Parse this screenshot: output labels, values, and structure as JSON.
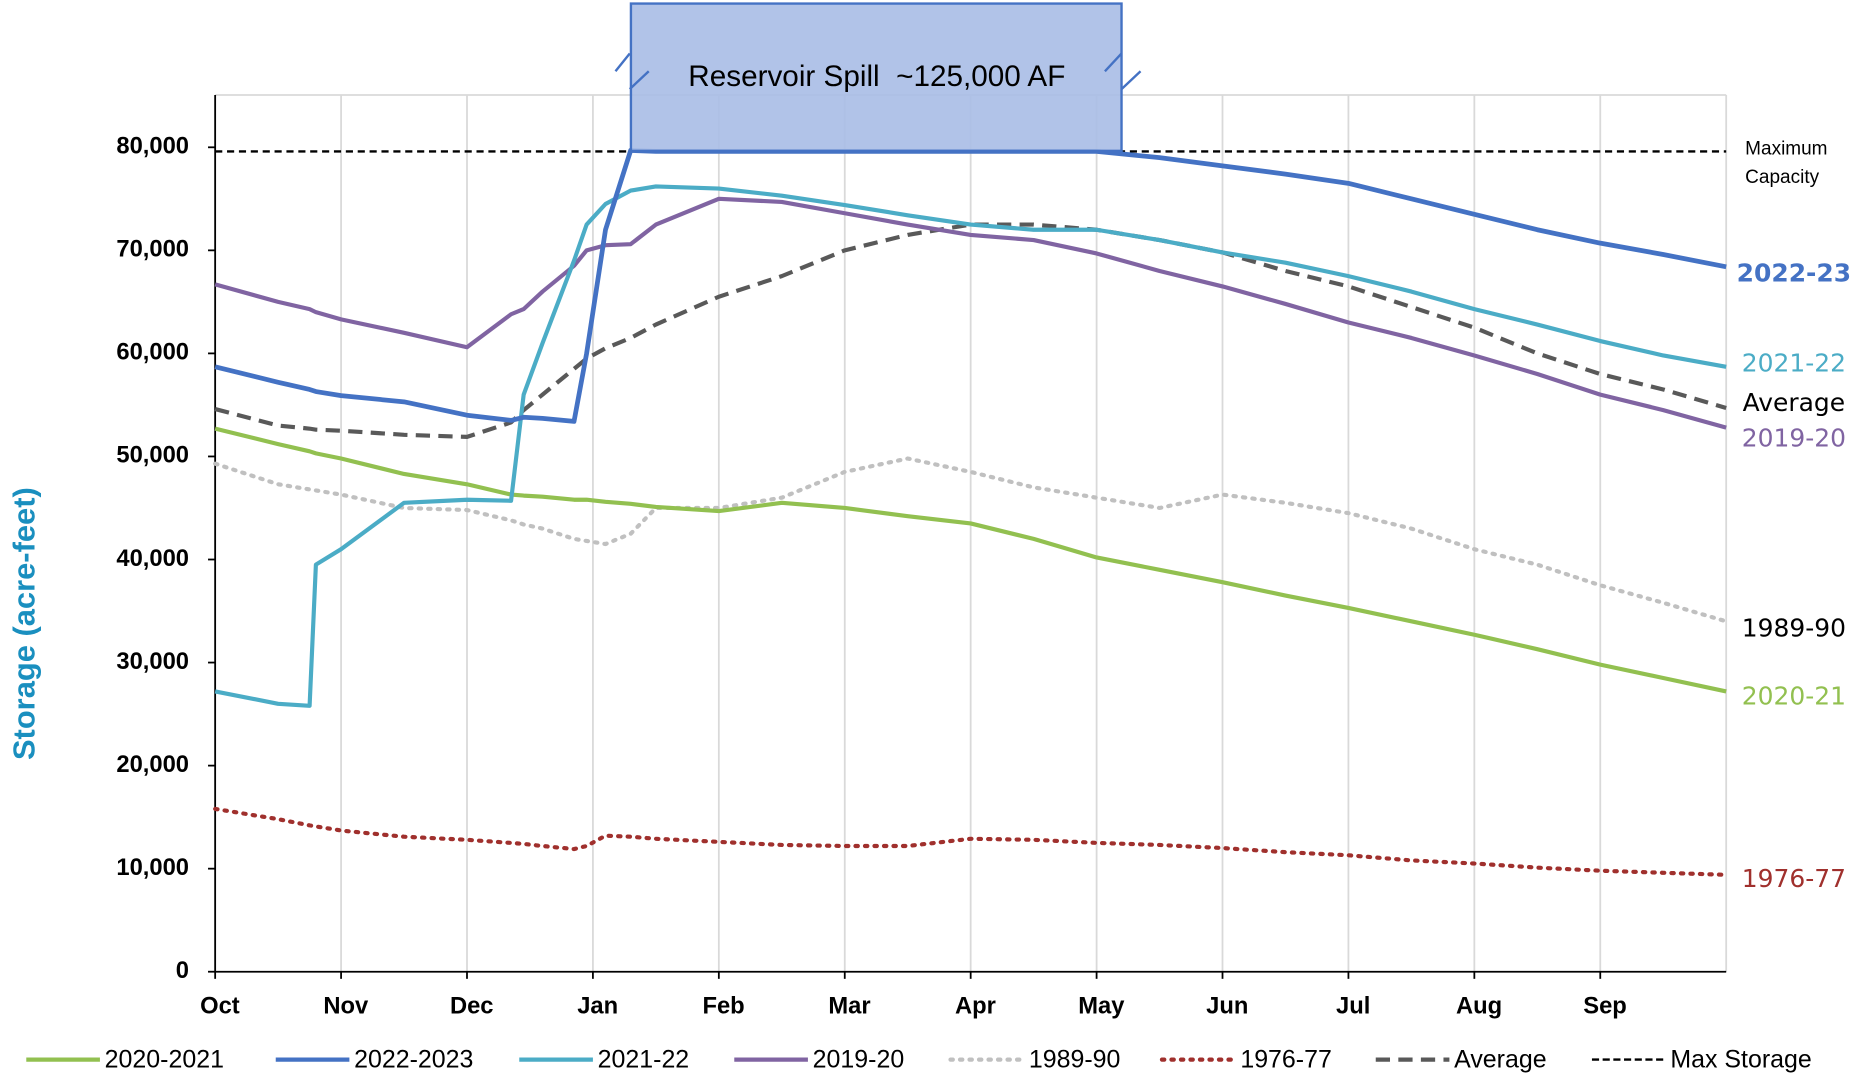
{
  "chart_data": {
    "type": "line",
    "y_axis_label": "Storage (acre-feet)",
    "annotation": "Reservoir Spill  ~125,000 AF",
    "xlim": [
      0,
      12
    ],
    "xticks": [
      {
        "value": 0,
        "label": "Oct"
      },
      {
        "value": 1,
        "label": "Nov"
      },
      {
        "value": 2,
        "label": "Dec"
      },
      {
        "value": 3,
        "label": "Jan"
      },
      {
        "value": 4,
        "label": "Feb"
      },
      {
        "value": 5,
        "label": "Mar"
      },
      {
        "value": 6,
        "label": "Apr"
      },
      {
        "value": 7,
        "label": "May"
      },
      {
        "value": 8,
        "label": "Jun"
      },
      {
        "value": 9,
        "label": "Jul"
      },
      {
        "value": 10,
        "label": "Aug"
      },
      {
        "value": 11,
        "label": "Sep"
      }
    ],
    "ylim": [
      0,
      80000
    ],
    "yticks": [
      0,
      {
        "value": 10000,
        "label": "10,000"
      },
      {
        "value": 20000,
        "label": "20,000"
      },
      {
        "value": 30000,
        "label": "30,000"
      },
      {
        "value": 40000,
        "label": "40,000"
      },
      {
        "value": 50000,
        "label": "50,000"
      },
      {
        "value": 60000,
        "label": "60,000"
      },
      {
        "value": 70000,
        "label": "70,000"
      },
      {
        "value": 80000,
        "label": "80,000"
      }
    ],
    "grid": true,
    "legend": "bottom",
    "x": [
      0,
      0.5,
      0.75,
      0.8,
      1,
      1.5,
      2,
      2.35,
      2.45,
      2.6,
      2.85,
      2.95,
      3.1,
      3.3,
      3.5,
      4,
      4.5,
      5,
      5.5,
      6,
      6.5,
      7,
      7.5,
      8,
      8.5,
      9,
      9.5,
      10,
      10.5,
      11,
      11.5,
      12
    ],
    "series": [
      {
        "name": "2020-2021",
        "end_label": "2020-21",
        "color": "#92c050",
        "style": "solid",
        "values": [
          52700,
          51200,
          50500,
          50300,
          49800,
          48300,
          47300,
          46300,
          46200,
          46100,
          45800,
          45800,
          45600,
          45400,
          45100,
          44700,
          45500,
          45000,
          44200,
          43500,
          42000,
          40200,
          39000,
          37800,
          36500,
          35300,
          34000,
          32700,
          31300,
          29800,
          28500,
          27200
        ]
      },
      {
        "name": "2022-2023",
        "end_label": "2022-23",
        "color": "#4472c4",
        "style": "solid",
        "values": [
          58700,
          57200,
          56500,
          56300,
          55900,
          55300,
          54000,
          53500,
          53800,
          53700,
          53400,
          60000,
          72000,
          79700,
          79600,
          79600,
          79600,
          79600,
          79600,
          79600,
          79600,
          79600,
          79000,
          78200,
          77400,
          76500,
          75000,
          73500,
          72000,
          70700,
          69600,
          68400
        ]
      },
      {
        "name": "2021-22",
        "end_label": "2021-22",
        "color": "#4bacc6",
        "style": "solid",
        "values": [
          27200,
          26000,
          25800,
          39500,
          41000,
          45500,
          45800,
          45700,
          56000,
          61000,
          69000,
          72500,
          74500,
          75800,
          76200,
          76000,
          75300,
          74400,
          73400,
          72500,
          72000,
          72000,
          71000,
          69800,
          68800,
          67500,
          66000,
          64300,
          62800,
          61200,
          59800,
          58700
        ]
      },
      {
        "name": "2019-20",
        "end_label": "2019-20",
        "color": "#8064a2",
        "style": "solid",
        "values": [
          66700,
          65000,
          64300,
          64000,
          63300,
          62000,
          60600,
          63800,
          64300,
          66000,
          68500,
          70000,
          70500,
          70600,
          72500,
          75000,
          74700,
          73600,
          72500,
          71500,
          71000,
          69700,
          68000,
          66500,
          64800,
          63000,
          61500,
          59800,
          58000,
          56000,
          54500,
          52800
        ]
      },
      {
        "name": "1989-90",
        "end_label": "1989-90",
        "color": "#c0c0c0",
        "style": "dotted",
        "values": [
          49300,
          47300,
          46800,
          46700,
          46300,
          45000,
          44800,
          43800,
          43400,
          43000,
          42000,
          41800,
          41500,
          42500,
          45000,
          45000,
          46000,
          48500,
          49800,
          48500,
          47000,
          46000,
          45000,
          46300,
          45500,
          44500,
          43000,
          41000,
          39500,
          37500,
          35800,
          34000
        ]
      },
      {
        "name": "1976-77",
        "end_label": "1976-77",
        "color": "#a0302d",
        "style": "dotted",
        "values": [
          15800,
          14800,
          14200,
          14100,
          13700,
          13100,
          12800,
          12500,
          12400,
          12200,
          11900,
          12200,
          13200,
          13100,
          12900,
          12600,
          12300,
          12200,
          12200,
          12900,
          12800,
          12500,
          12300,
          12000,
          11600,
          11300,
          10800,
          10500,
          10100,
          9800,
          9600,
          9400
        ]
      },
      {
        "name": "Average",
        "end_label": "Average",
        "color": "#595959",
        "style": "dashed",
        "values": [
          54600,
          53000,
          52700,
          52600,
          52500,
          52100,
          51900,
          53300,
          54500,
          56000,
          58500,
          59500,
          60500,
          61500,
          62800,
          65500,
          67500,
          70000,
          71500,
          72500,
          72500,
          72000,
          71000,
          69800,
          68000,
          66500,
          64500,
          62500,
          60000,
          58000,
          56500,
          54700
        ]
      }
    ],
    "max_storage": {
      "name": "Max Storage",
      "label": [
        "Maximum",
        "Capacity"
      ],
      "value": 79600,
      "color": "#000000"
    }
  }
}
